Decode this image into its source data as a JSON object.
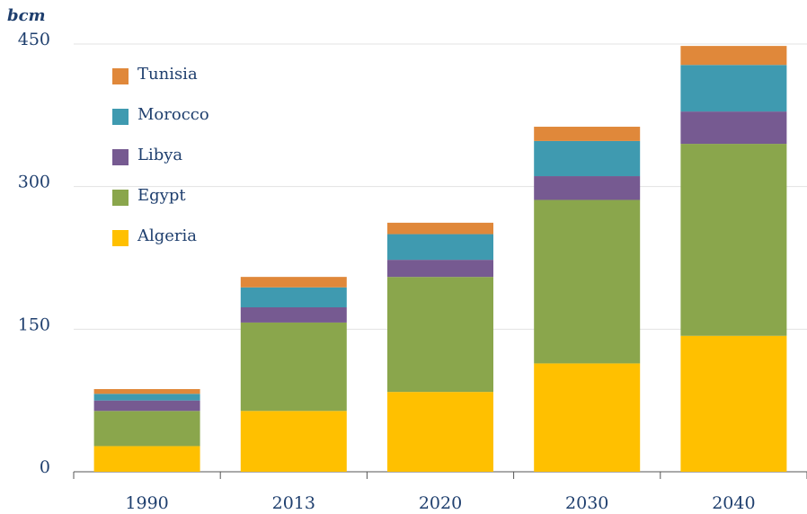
{
  "chart_data": {
    "type": "stacked_bar",
    "ylabel": "bcm",
    "categories": [
      "1990",
      "2013",
      "2020",
      "2030",
      "2040"
    ],
    "series": [
      {
        "name": "Algeria",
        "color": "#ffc000",
        "values": [
          27,
          64,
          84,
          114,
          143
        ]
      },
      {
        "name": "Egypt",
        "color": "#8aa64c",
        "values": [
          37,
          93,
          121,
          172,
          202
        ]
      },
      {
        "name": "Libya",
        "color": "#765a91",
        "values": [
          11,
          16,
          18,
          25,
          34
        ]
      },
      {
        "name": "Morocco",
        "color": "#3f9ab0",
        "values": [
          7,
          21,
          27,
          37,
          49
        ]
      },
      {
        "name": "Tunisia",
        "color": "#e0883a",
        "values": [
          5,
          11,
          12,
          15,
          20
        ]
      }
    ],
    "ylim": [
      0,
      450
    ],
    "yticks": [
      0,
      150,
      300,
      450
    ],
    "grid": true,
    "legend": "top-left"
  }
}
